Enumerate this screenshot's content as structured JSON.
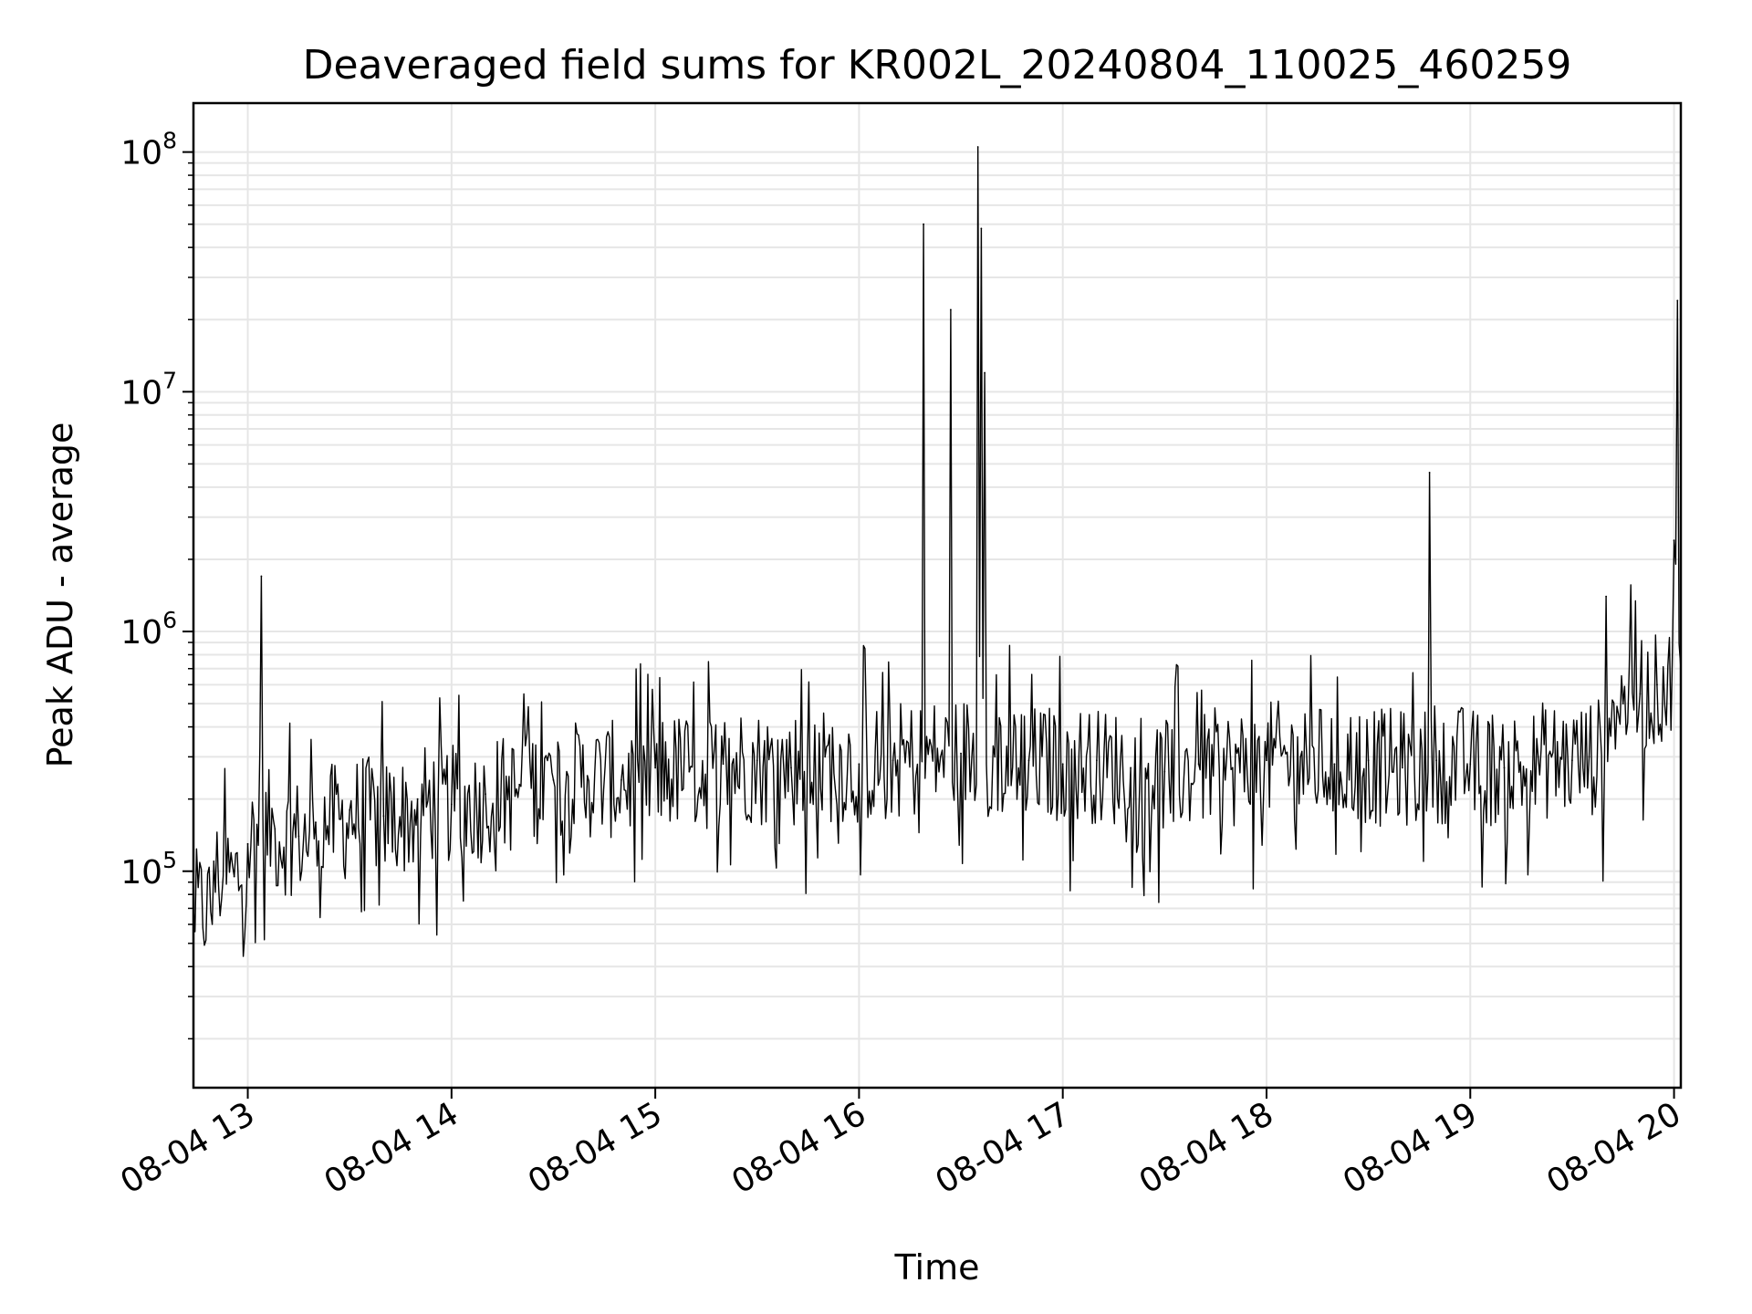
{
  "chart_data": {
    "type": "line",
    "title": "Deaveraged field sums for KR002L_20240804_110025_460259",
    "xlabel": "Time",
    "ylabel": "Peak ADU - average",
    "yscale": "log",
    "ylim": [
      12500,
      160000000
    ],
    "xlim": [
      "2024-08-04 12:44",
      "2024-08-04 20:02"
    ],
    "grid": true,
    "line_color": "#000000",
    "grid_color": "#e6e6e6",
    "xticks": [
      {
        "value": "2024-08-04 13:00",
        "label": "08-04 13"
      },
      {
        "value": "2024-08-04 14:00",
        "label": "08-04 14"
      },
      {
        "value": "2024-08-04 15:00",
        "label": "08-04 15"
      },
      {
        "value": "2024-08-04 16:00",
        "label": "08-04 16"
      },
      {
        "value": "2024-08-04 17:00",
        "label": "08-04 17"
      },
      {
        "value": "2024-08-04 18:00",
        "label": "08-04 18"
      },
      {
        "value": "2024-08-04 19:00",
        "label": "08-04 19"
      },
      {
        "value": "2024-08-04 20:00",
        "label": "08-04 20"
      }
    ],
    "yticks": [
      {
        "value": 100000,
        "base": "10",
        "exp": "5"
      },
      {
        "value": 1000000,
        "base": "10",
        "exp": "6"
      },
      {
        "value": 10000000,
        "base": "10",
        "exp": "7"
      },
      {
        "value": 100000000,
        "base": "10",
        "exp": "8"
      }
    ],
    "series": [
      {
        "x": [
          "2024-08-04 12:44",
          "2024-08-04 12:50",
          "2024-08-04 12:56",
          "2024-08-04 13:00",
          "2024-08-04 13:04",
          "2024-08-04 13:08",
          "2024-08-04 13:15",
          "2024-08-04 13:20",
          "2024-08-04 13:30",
          "2024-08-04 13:40",
          "2024-08-04 13:50",
          "2024-08-04 14:00",
          "2024-08-04 14:10",
          "2024-08-04 14:20",
          "2024-08-04 14:30",
          "2024-08-04 14:40",
          "2024-08-04 14:50",
          "2024-08-04 15:00",
          "2024-08-04 15:10",
          "2024-08-04 15:20",
          "2024-08-04 15:30",
          "2024-08-04 15:40",
          "2024-08-04 15:50",
          "2024-08-04 16:00",
          "2024-08-04 16:10",
          "2024-08-04 16:19",
          "2024-08-04 16:24",
          "2024-08-04 16:27",
          "2024-08-04 16:30",
          "2024-08-04 16:35",
          "2024-08-04 16:36",
          "2024-08-04 16:37",
          "2024-08-04 16:40",
          "2024-08-04 16:50",
          "2024-08-04 17:00",
          "2024-08-04 17:10",
          "2024-08-04 17:20",
          "2024-08-04 17:30",
          "2024-08-04 17:40",
          "2024-08-04 17:50",
          "2024-08-04 18:00",
          "2024-08-04 18:10",
          "2024-08-04 18:20",
          "2024-08-04 18:30",
          "2024-08-04 18:40",
          "2024-08-04 18:48",
          "2024-08-04 18:50",
          "2024-08-04 19:00",
          "2024-08-04 19:10",
          "2024-08-04 19:20",
          "2024-08-04 19:30",
          "2024-08-04 19:35",
          "2024-08-04 19:40",
          "2024-08-04 19:45",
          "2024-08-04 19:50",
          "2024-08-04 19:55",
          "2024-08-04 20:00",
          "2024-08-04 20:01",
          "2024-08-04 20:02"
        ],
        "y": [
          70000,
          110000,
          95000,
          130000,
          1700000,
          150000,
          140000,
          160000,
          180000,
          170000,
          200000,
          190000,
          210000,
          230000,
          240000,
          250000,
          240000,
          270000,
          260000,
          280000,
          290000,
          270000,
          300000,
          280000,
          290000,
          50000000,
          300000,
          22000000,
          310000,
          105000000,
          48000000,
          12000000,
          300000,
          290000,
          280000,
          290000,
          270000,
          260000,
          280000,
          270000,
          290000,
          300000,
          280000,
          290000,
          270000,
          4600000,
          290000,
          280000,
          270000,
          300000,
          290000,
          300000,
          1400000,
          500000,
          550000,
          600000,
          2400000,
          24000000,
          700000
        ]
      }
    ]
  }
}
